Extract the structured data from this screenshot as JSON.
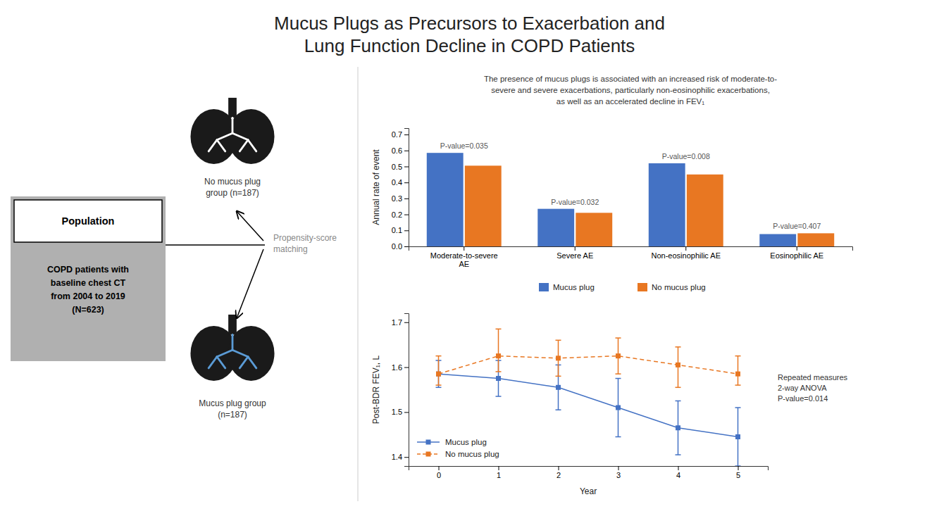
{
  "chart_data": [
    {
      "type": "bar",
      "title": "Mucus Plugs as Precursors to Exacerbation and\nLung Function Decline in COPD Patients",
      "subtitle": "The presence of mucus plugs is associated with an increased risk of moderate-to-\nsevere and severe exacerbations, particularly non-eosinophilic exacerbations,\nas well as an accelerated decline in FEV₁",
      "categories": [
        "Moderate-to-severe\nAE",
        "Severe AE",
        "Non-eosinophilic AE",
        "Eosinophilic AE"
      ],
      "series": [
        {
          "name": "Mucus plug",
          "color": "#4472C4",
          "values": [
            0.585,
            0.235,
            0.52,
            0.077
          ]
        },
        {
          "name": "No mucus plug",
          "color": "#E87722",
          "values": [
            0.505,
            0.21,
            0.45,
            0.082
          ]
        }
      ],
      "annotations": [
        "P-value=0.035",
        "P-value=0.032",
        "P-value=0.008",
        "P-value=0.407"
      ],
      "ylabel": "Annual rate of event",
      "ylim": [
        0,
        0.74
      ],
      "yticks": [
        {
          "value": 0,
          "label": "0.0"
        },
        0.1,
        0.2,
        0.3,
        0.4,
        0.5,
        0.6,
        0.7
      ],
      "grid": false,
      "legend": "bottom"
    },
    {
      "type": "line",
      "x": [
        0,
        1,
        2,
        3,
        4,
        5
      ],
      "series": [
        {
          "name": "Mucus plug",
          "color": "#4472C4",
          "marker": "square",
          "line_style": "solid",
          "values": [
            1.585,
            1.575,
            1.555,
            1.51,
            1.465,
            1.445
          ],
          "yerr_low": [
            0.03,
            0.04,
            0.05,
            0.065,
            0.06,
            0.065
          ],
          "yerr_high": [
            0.03,
            0.04,
            0.05,
            0.065,
            0.06,
            0.065
          ]
        },
        {
          "name": "No mucus plug",
          "color": "#E87722",
          "marker": "square",
          "line_style": "dashed",
          "values": [
            1.585,
            1.625,
            1.62,
            1.625,
            1.605,
            1.585
          ],
          "yerr_low": [
            0.025,
            0.035,
            0.04,
            0.04,
            0.05,
            0.025
          ],
          "yerr_high": [
            0.04,
            0.06,
            0.04,
            0.04,
            0.04,
            0.04
          ]
        }
      ],
      "xlabel": "Year",
      "ylabel": "Post-BDR FEV₁, L",
      "xlim": [
        -0.5,
        5.5
      ],
      "xticks": [
        0,
        1,
        2,
        3,
        4,
        5
      ],
      "ylim": [
        1.38,
        1.72
      ],
      "yticks": [
        1.4,
        1.5,
        1.6,
        1.7
      ],
      "annotations": [
        "Repeated measures\n2-way ANOVA\nP-value=0.014"
      ],
      "grid": false,
      "legend": "lower left"
    },
    {
      "type": "diagram",
      "title": "Population",
      "annotations": [
        "COPD patients with\nbaseline chest CT\nfrom 2004 to 2019\n(N=623)",
        "Propensity-score\nmatching",
        "No mucus plug\ngroup (n=187)",
        "Mucus plug group\n(n=187)"
      ]
    }
  ]
}
